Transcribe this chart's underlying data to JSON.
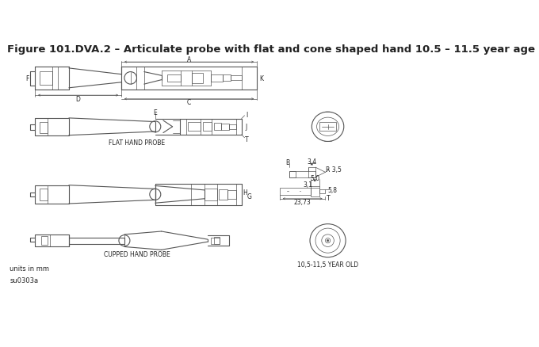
{
  "title": "Figure 101.DVA.2 – Articulate probe with flat and cone shaped hand 10.5 – 11.5 year age",
  "bg_color": "#ffffff",
  "line_color": "#555555",
  "text_color": "#222222",
  "title_fontsize": 9.5,
  "annot_fontsize": 5.5,
  "label_fontsize": 5.5,
  "footer_text1": "units in mm",
  "footer_text2": "su0303a",
  "flat_hand_label": "FLAT HAND PROBE",
  "cupped_hand_label": "CUPPED HAND PROBE",
  "year_old_label": "10,5-11,5 YEAR OLD",
  "dim_A": "A",
  "dim_C": "C",
  "dim_D": "D",
  "dim_E": "E",
  "dim_H": "H",
  "dim_G": "G",
  "dim_I": "I",
  "dim_J": "J",
  "dim_K": "K",
  "dim_F": "F",
  "dim_B": "B",
  "dim_T": "T",
  "val_34": "3,4",
  "val_R35": "R 3,5",
  "val_50": "5,0",
  "val_31": "3,1",
  "val_58": "5,8",
  "val_2373": "23,73"
}
